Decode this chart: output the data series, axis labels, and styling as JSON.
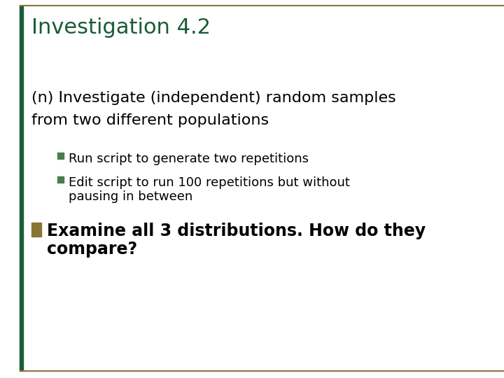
{
  "title": "Investigation 4.2",
  "title_color": "#1a5c38",
  "title_fontsize": 22,
  "background_color": "#ffffff",
  "border_color": "#8B7536",
  "left_bar_color": "#1a5c38",
  "heading_line1": "(n) Investigate (independent) random samples",
  "heading_line2": "from two different populations",
  "heading_fontsize": 16,
  "heading_color": "#000000",
  "bullet_q1": "Run script to generate two repetitions",
  "bullet_q2_line1": "Edit script to run 100 repetitions but without",
  "bullet_q2_line2": "pausing in between",
  "bullet_n_line1": "Examine all 3 distributions. How do they",
  "bullet_n_line2": "compare?",
  "bullet_q_fontsize": 13,
  "bullet_n_fontsize": 17,
  "bullet_q_color": "#000000",
  "bullet_n_color": "#000000",
  "square_bullet_color": "#4a7c4e",
  "rect_bullet_color": "#8B7536"
}
